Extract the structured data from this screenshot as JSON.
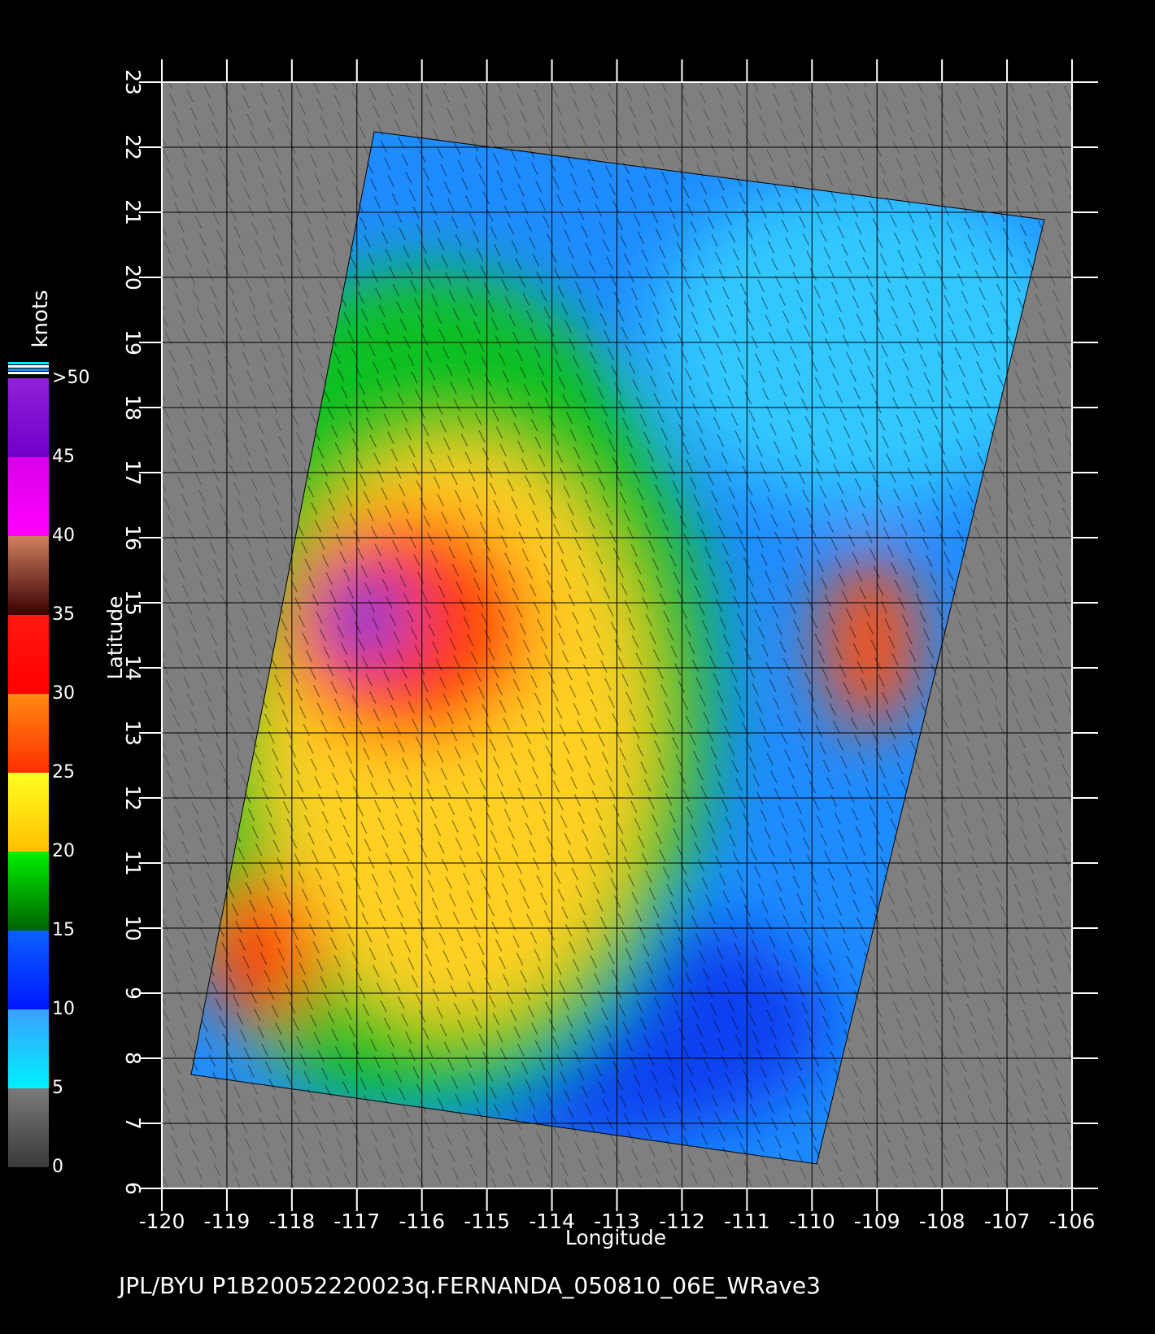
{
  "title": "JPL/BYU  P1B20052220023q.FERNANDA_050810_06E_WRave3",
  "x_axis": {
    "label": "Longitude",
    "ticks": [
      -120,
      -119,
      -118,
      -117,
      -116,
      -115,
      -114,
      -113,
      -112,
      -111,
      -110,
      -109,
      -108,
      -107,
      -106
    ],
    "lim": [
      -120,
      -106
    ]
  },
  "y_axis": {
    "label": "Latitude",
    "ticks": [
      6,
      7,
      8,
      9,
      10,
      11,
      12,
      13,
      14,
      15,
      16,
      17,
      18,
      19,
      20,
      21,
      22,
      23
    ],
    "lim": [
      6,
      23
    ]
  },
  "colorbar": {
    "label": "knots",
    "lim": [
      0,
      50
    ],
    "ticks": [
      0,
      5,
      10,
      15,
      20,
      25,
      30,
      35,
      40,
      {
        "value": 45,
        "label": "45"
      },
      {
        "value": 50,
        "label": ">50"
      }
    ],
    "colors": [
      [
        "#3a3a3a",
        "#7a7a7a"
      ],
      [
        "#00f0ff",
        "#3aa0ff"
      ],
      [
        "#0018ff",
        "#0a60ff"
      ],
      [
        "#006400",
        "#00f000"
      ],
      [
        "#ffc000",
        "#ffff20"
      ],
      [
        "#ff3000",
        "#ff8a10"
      ],
      [
        "#ff0000",
        "#ff1810"
      ],
      [
        "#3a0000",
        "#d08060"
      ],
      [
        "#ff00ff",
        "#d800e8"
      ],
      [
        "#7000c8",
        "#9020d8"
      ]
    ]
  }
}
